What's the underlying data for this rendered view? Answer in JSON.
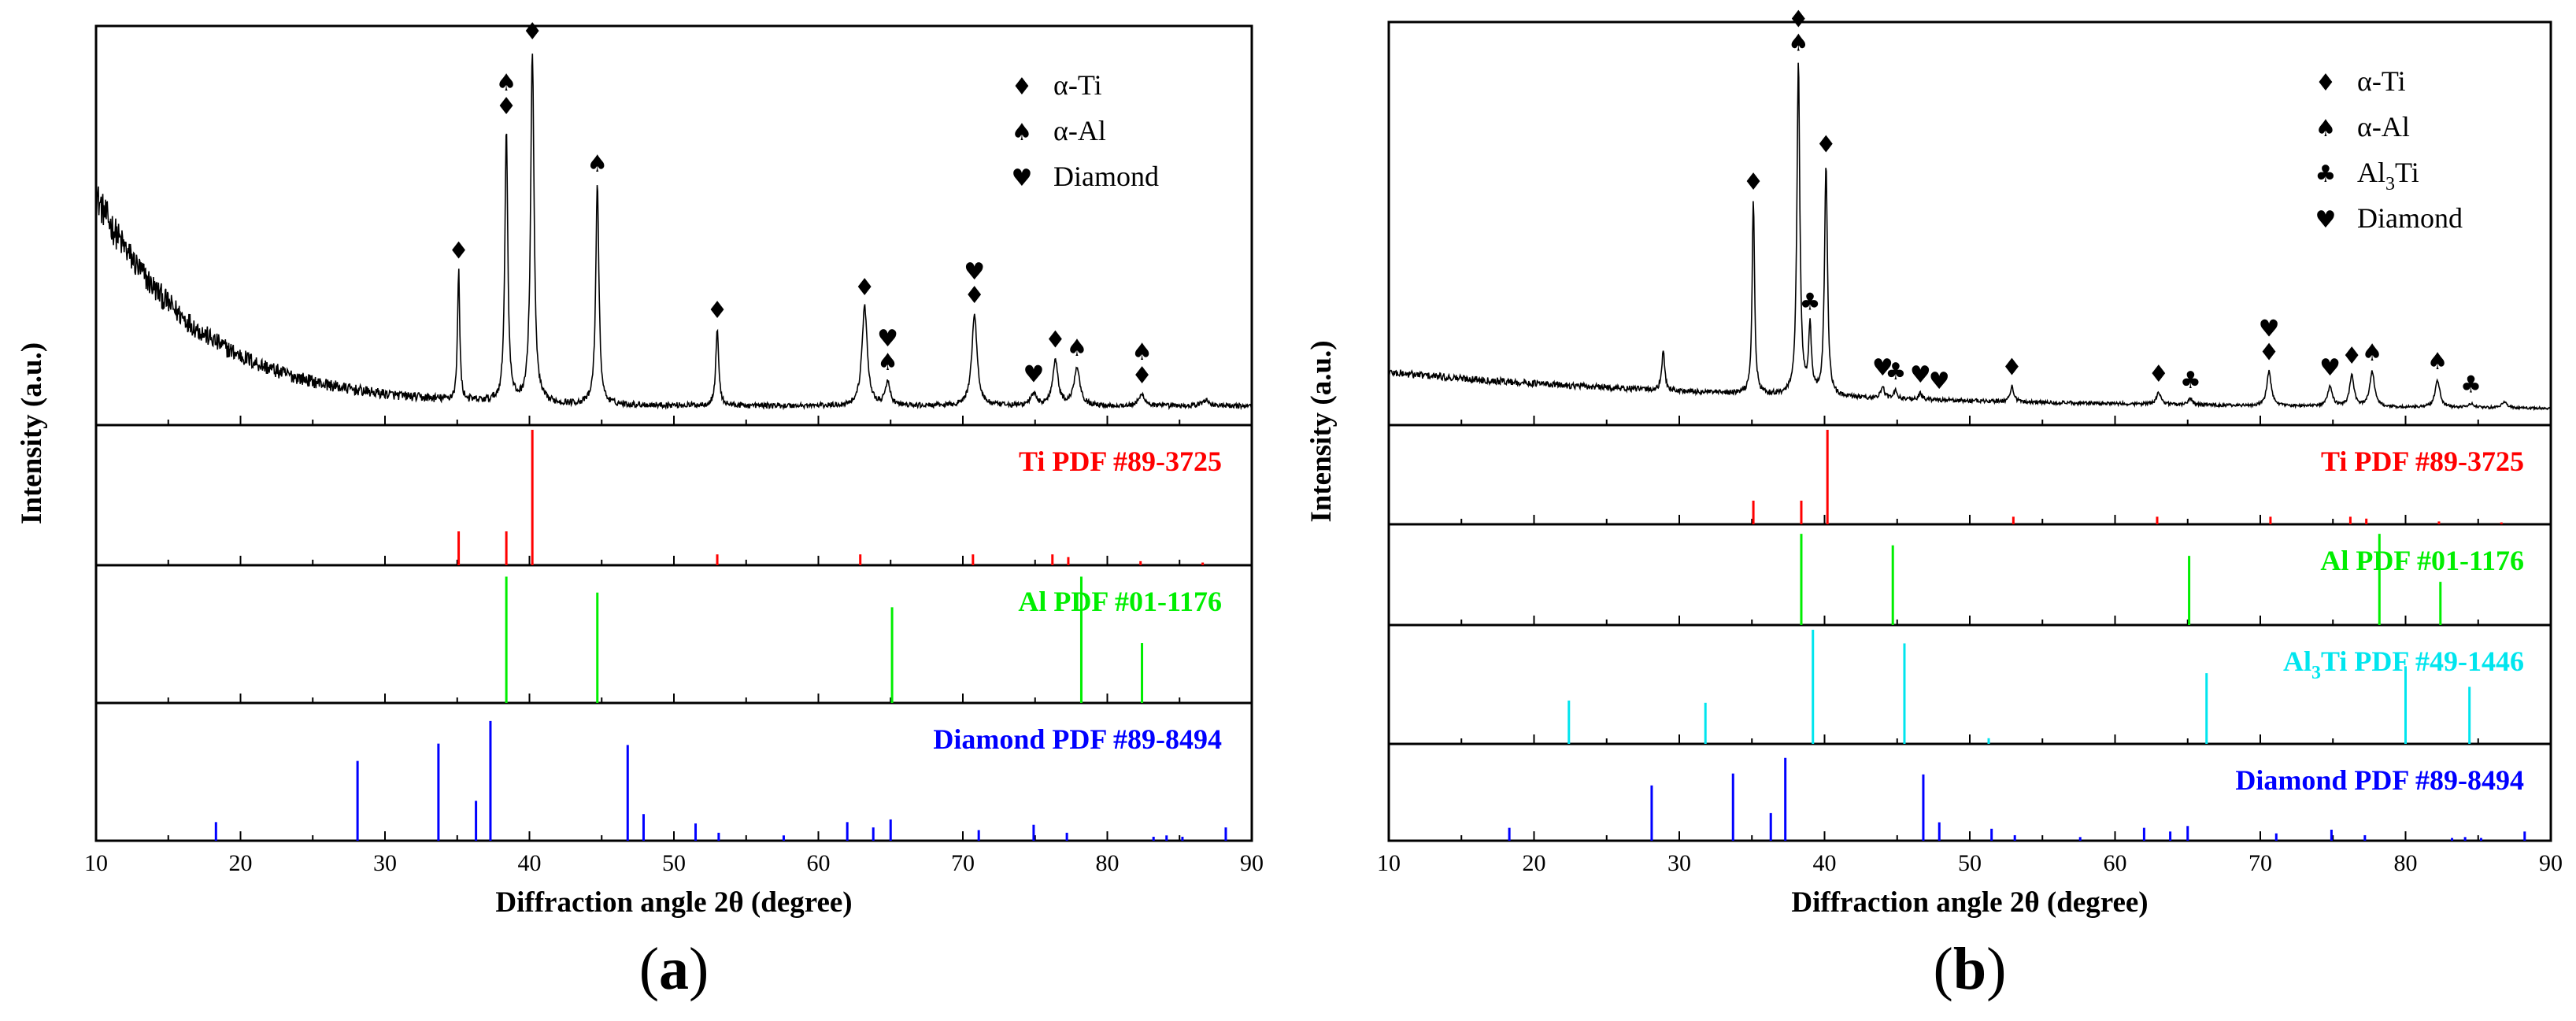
{
  "chart_data": [
    {
      "id": "a",
      "type": "line",
      "panel_label": "(a)",
      "panel_label_open": "(",
      "panel_label_letter": "a",
      "panel_label_close": ")",
      "xlabel": "Diffraction angle 2θ (degree)",
      "ylabel": "Intensity (a.u.)",
      "xlim": [
        10,
        90
      ],
      "xticks": [
        10,
        20,
        30,
        40,
        50,
        60,
        70,
        80,
        90
      ],
      "legend": [
        {
          "symbol": "♦",
          "label": "α-Ti"
        },
        {
          "symbol": "♠",
          "label": "α-Al"
        },
        {
          "symbol": "♥",
          "label": "Diamond"
        }
      ],
      "pattern": {
        "background": {
          "start": 0.55,
          "decay": 7.0,
          "floor": 0.025,
          "noise": 0.018
        },
        "peaks": [
          {
            "x": 35.1,
            "h": 0.34,
            "w": 0.09
          },
          {
            "x": 38.4,
            "h": 0.72,
            "w": 0.12
          },
          {
            "x": 40.2,
            "h": 0.92,
            "w": 0.14
          },
          {
            "x": 44.7,
            "h": 0.58,
            "w": 0.13
          },
          {
            "x": 53.0,
            "h": 0.2,
            "w": 0.12
          },
          {
            "x": 63.2,
            "h": 0.26,
            "w": 0.22
          },
          {
            "x": 64.8,
            "h": 0.06,
            "w": 0.2
          },
          {
            "x": 70.8,
            "h": 0.24,
            "w": 0.22
          },
          {
            "x": 74.9,
            "h": 0.03,
            "w": 0.25
          },
          {
            "x": 76.4,
            "h": 0.12,
            "w": 0.22
          },
          {
            "x": 77.9,
            "h": 0.1,
            "w": 0.25
          },
          {
            "x": 82.4,
            "h": 0.03,
            "w": 0.25
          },
          {
            "x": 86.8,
            "h": 0.015,
            "w": 0.3
          }
        ],
        "markers": [
          {
            "x": 35.1,
            "symbols": [
              "♦"
            ]
          },
          {
            "x": 38.4,
            "symbols": [
              "♠",
              "♦"
            ]
          },
          {
            "x": 40.2,
            "symbols": [
              "♦"
            ]
          },
          {
            "x": 44.7,
            "symbols": [
              "♠"
            ]
          },
          {
            "x": 53.0,
            "symbols": [
              "♦"
            ]
          },
          {
            "x": 63.2,
            "symbols": [
              "♦"
            ]
          },
          {
            "x": 64.8,
            "symbols": [
              "♥",
              "♠"
            ]
          },
          {
            "x": 70.8,
            "symbols": [
              "♥",
              "♦"
            ]
          },
          {
            "x": 74.9,
            "symbols": [
              "♥"
            ]
          },
          {
            "x": 76.4,
            "symbols": [
              "♦"
            ]
          },
          {
            "x": 77.9,
            "symbols": [
              "♠"
            ]
          },
          {
            "x": 82.4,
            "symbols": [
              "♠",
              "♦"
            ]
          }
        ]
      },
      "references": [
        {
          "label": "Ti PDF #89-3725",
          "color": "#ff0000",
          "lines": [
            {
              "x": 35.1,
              "h": 0.25
            },
            {
              "x": 38.4,
              "h": 0.25
            },
            {
              "x": 40.2,
              "h": 1.0
            },
            {
              "x": 53.0,
              "h": 0.08
            },
            {
              "x": 62.9,
              "h": 0.08
            },
            {
              "x": 70.7,
              "h": 0.08
            },
            {
              "x": 76.2,
              "h": 0.08
            },
            {
              "x": 77.3,
              "h": 0.06
            },
            {
              "x": 82.3,
              "h": 0.03
            },
            {
              "x": 86.6,
              "h": 0.02
            }
          ]
        },
        {
          "label": "Al PDF #01-1176",
          "color": "#00ee00",
          "lines": [
            {
              "x": 38.4,
              "h": 0.95
            },
            {
              "x": 44.7,
              "h": 0.83
            },
            {
              "x": 65.1,
              "h": 0.72
            },
            {
              "x": 78.2,
              "h": 0.95
            },
            {
              "x": 82.4,
              "h": 0.45
            }
          ]
        },
        {
          "label": "Diamond PDF #89-8494",
          "color": "#0000ff",
          "lines": [
            {
              "x": 18.3,
              "h": 0.14
            },
            {
              "x": 28.1,
              "h": 0.6
            },
            {
              "x": 33.7,
              "h": 0.73
            },
            {
              "x": 36.3,
              "h": 0.3
            },
            {
              "x": 37.3,
              "h": 0.9
            },
            {
              "x": 46.8,
              "h": 0.72
            },
            {
              "x": 47.9,
              "h": 0.2
            },
            {
              "x": 51.5,
              "h": 0.13
            },
            {
              "x": 53.1,
              "h": 0.06
            },
            {
              "x": 57.6,
              "h": 0.04
            },
            {
              "x": 62.0,
              "h": 0.14
            },
            {
              "x": 63.8,
              "h": 0.1
            },
            {
              "x": 65.0,
              "h": 0.16
            },
            {
              "x": 71.1,
              "h": 0.08
            },
            {
              "x": 74.9,
              "h": 0.12
            },
            {
              "x": 77.2,
              "h": 0.06
            },
            {
              "x": 83.2,
              "h": 0.03
            },
            {
              "x": 84.1,
              "h": 0.04
            },
            {
              "x": 85.2,
              "h": 0.03
            },
            {
              "x": 88.2,
              "h": 0.1
            }
          ]
        }
      ]
    },
    {
      "id": "b",
      "type": "line",
      "panel_label": "(b)",
      "panel_label_open": "(",
      "panel_label_letter": "b",
      "panel_label_close": ")",
      "xlabel": "Diffraction angle 2θ (degree)",
      "ylabel": "Intensity (a.u.)",
      "xlim": [
        10,
        90
      ],
      "xticks": [
        10,
        20,
        30,
        40,
        50,
        60,
        70,
        80,
        90
      ],
      "legend": [
        {
          "symbol": "♦",
          "label": "α-Ti"
        },
        {
          "symbol": "♠",
          "label": "α-Al"
        },
        {
          "symbol": "♣",
          "label": "Al",
          "sub": "3",
          "tail": "Ti"
        },
        {
          "symbol": "♥",
          "label": "Diamond"
        }
      ],
      "pattern": {
        "background": {
          "start": 0.1,
          "decay": 30.0,
          "floor": 0.012,
          "noise": 0.004
        },
        "peaks": [
          {
            "x": 28.9,
            "h": 0.1,
            "w": 0.12
          },
          {
            "x": 35.1,
            "h": 0.5,
            "w": 0.1
          },
          {
            "x": 38.2,
            "h": 0.86,
            "w": 0.12
          },
          {
            "x": 39.0,
            "h": 0.17,
            "w": 0.12
          },
          {
            "x": 40.1,
            "h": 0.6,
            "w": 0.12
          },
          {
            "x": 44.0,
            "h": 0.03,
            "w": 0.15
          },
          {
            "x": 44.9,
            "h": 0.02,
            "w": 0.15
          },
          {
            "x": 46.6,
            "h": 0.015,
            "w": 0.15
          },
          {
            "x": 52.9,
            "h": 0.04,
            "w": 0.15
          },
          {
            "x": 63.0,
            "h": 0.03,
            "w": 0.2
          },
          {
            "x": 65.2,
            "h": 0.015,
            "w": 0.2
          },
          {
            "x": 70.6,
            "h": 0.09,
            "w": 0.18
          },
          {
            "x": 74.8,
            "h": 0.05,
            "w": 0.2
          },
          {
            "x": 76.3,
            "h": 0.08,
            "w": 0.18
          },
          {
            "x": 77.7,
            "h": 0.09,
            "w": 0.2
          },
          {
            "x": 82.2,
            "h": 0.07,
            "w": 0.2
          },
          {
            "x": 84.5,
            "h": 0.01,
            "w": 0.25
          },
          {
            "x": 86.8,
            "h": 0.015,
            "w": 0.25
          }
        ],
        "markers": [
          {
            "x": 35.1,
            "symbols": [
              "♦"
            ]
          },
          {
            "x": 38.2,
            "symbols": [
              "♦",
              "♠"
            ]
          },
          {
            "x": 39.0,
            "symbols": [
              "♣"
            ]
          },
          {
            "x": 40.1,
            "symbols": [
              "♦"
            ]
          },
          {
            "x": 44.0,
            "symbols": [
              "♥"
            ]
          },
          {
            "x": 44.9,
            "symbols": [
              "♣"
            ]
          },
          {
            "x": 46.6,
            "symbols": [
              "♥"
            ]
          },
          {
            "x": 47.9,
            "symbols": [
              "♥"
            ]
          },
          {
            "x": 52.9,
            "symbols": [
              "♦"
            ]
          },
          {
            "x": 63.0,
            "symbols": [
              "♦"
            ]
          },
          {
            "x": 65.2,
            "symbols": [
              "♣"
            ]
          },
          {
            "x": 70.6,
            "symbols": [
              "♥",
              "♦"
            ]
          },
          {
            "x": 74.8,
            "symbols": [
              "♥"
            ]
          },
          {
            "x": 76.3,
            "symbols": [
              "♦"
            ]
          },
          {
            "x": 77.7,
            "symbols": [
              "♠"
            ]
          },
          {
            "x": 82.2,
            "symbols": [
              "♠"
            ]
          },
          {
            "x": 84.5,
            "symbols": [
              "♣"
            ]
          }
        ]
      },
      "references": [
        {
          "label": "Ti PDF #89-3725",
          "color": "#ff0000",
          "lines": [
            {
              "x": 35.1,
              "h": 0.25
            },
            {
              "x": 38.4,
              "h": 0.25
            },
            {
              "x": 40.2,
              "h": 1.0
            },
            {
              "x": 53.0,
              "h": 0.08
            },
            {
              "x": 62.9,
              "h": 0.08
            },
            {
              "x": 70.7,
              "h": 0.08
            },
            {
              "x": 76.2,
              "h": 0.08
            },
            {
              "x": 77.3,
              "h": 0.06
            },
            {
              "x": 82.3,
              "h": 0.03
            },
            {
              "x": 86.6,
              "h": 0.02
            }
          ]
        },
        {
          "label": "Al PDF #01-1176",
          "color": "#00ee00",
          "lines": [
            {
              "x": 38.4,
              "h": 0.95
            },
            {
              "x": 44.7,
              "h": 0.83
            },
            {
              "x": 65.1,
              "h": 0.72
            },
            {
              "x": 78.2,
              "h": 0.95
            },
            {
              "x": 82.4,
              "h": 0.45
            }
          ]
        },
        {
          "label": "Al3Ti PDF #49-1446",
          "label_a": "Al",
          "label_sub": "3",
          "label_b": "Ti PDF #49-1446",
          "color": "#00e5ee",
          "lines": [
            {
              "x": 22.4,
              "h": 0.38
            },
            {
              "x": 31.8,
              "h": 0.36
            },
            {
              "x": 39.2,
              "h": 1.0
            },
            {
              "x": 45.5,
              "h": 0.88
            },
            {
              "x": 51.3,
              "h": 0.05
            },
            {
              "x": 66.3,
              "h": 0.62
            },
            {
              "x": 80.0,
              "h": 0.68
            },
            {
              "x": 84.4,
              "h": 0.5
            }
          ]
        },
        {
          "label": "Diamond PDF #89-8494",
          "color": "#0000ff",
          "lines": [
            {
              "x": 18.3,
              "h": 0.14
            },
            {
              "x": 28.1,
              "h": 0.6
            },
            {
              "x": 33.7,
              "h": 0.73
            },
            {
              "x": 36.3,
              "h": 0.3
            },
            {
              "x": 37.3,
              "h": 0.9
            },
            {
              "x": 46.8,
              "h": 0.72
            },
            {
              "x": 47.9,
              "h": 0.2
            },
            {
              "x": 51.5,
              "h": 0.13
            },
            {
              "x": 53.1,
              "h": 0.06
            },
            {
              "x": 57.6,
              "h": 0.04
            },
            {
              "x": 62.0,
              "h": 0.14
            },
            {
              "x": 63.8,
              "h": 0.1
            },
            {
              "x": 65.0,
              "h": 0.16
            },
            {
              "x": 71.1,
              "h": 0.08
            },
            {
              "x": 74.9,
              "h": 0.12
            },
            {
              "x": 77.2,
              "h": 0.06
            },
            {
              "x": 83.2,
              "h": 0.03
            },
            {
              "x": 84.1,
              "h": 0.04
            },
            {
              "x": 85.2,
              "h": 0.03
            },
            {
              "x": 88.2,
              "h": 0.1
            }
          ]
        }
      ]
    }
  ]
}
